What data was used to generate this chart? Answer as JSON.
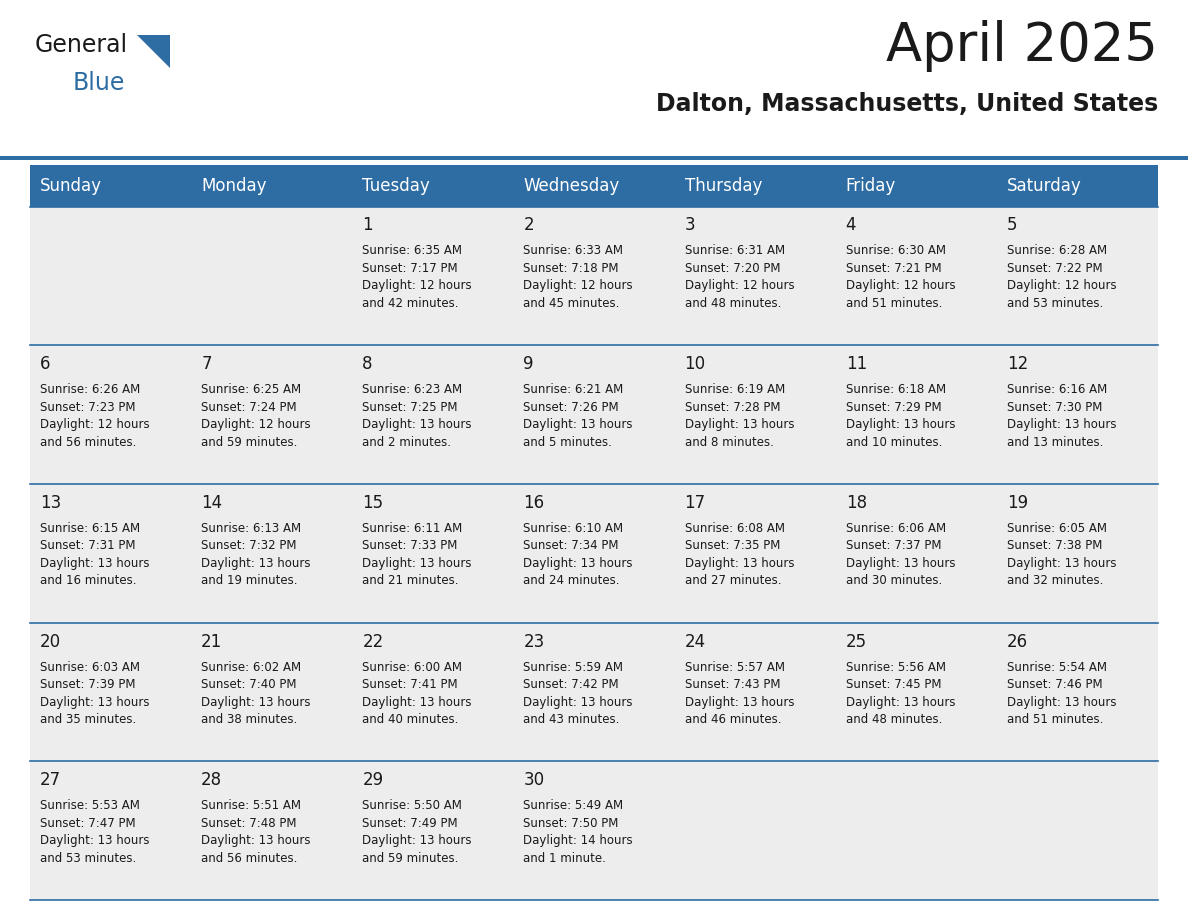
{
  "title": "April 2025",
  "subtitle": "Dalton, Massachusetts, United States",
  "header_color": "#2E6DA4",
  "header_text_color": "#FFFFFF",
  "background_color": "#FFFFFF",
  "cell_bg_color": "#EDEDED",
  "text_color": "#1a1a1a",
  "border_color": "#2E6DA4",
  "days_of_week": [
    "Sunday",
    "Monday",
    "Tuesday",
    "Wednesday",
    "Thursday",
    "Friday",
    "Saturday"
  ],
  "weeks": [
    [
      {
        "day": "",
        "text": ""
      },
      {
        "day": "",
        "text": ""
      },
      {
        "day": "1",
        "text": "Sunrise: 6:35 AM\nSunset: 7:17 PM\nDaylight: 12 hours\nand 42 minutes."
      },
      {
        "day": "2",
        "text": "Sunrise: 6:33 AM\nSunset: 7:18 PM\nDaylight: 12 hours\nand 45 minutes."
      },
      {
        "day": "3",
        "text": "Sunrise: 6:31 AM\nSunset: 7:20 PM\nDaylight: 12 hours\nand 48 minutes."
      },
      {
        "day": "4",
        "text": "Sunrise: 6:30 AM\nSunset: 7:21 PM\nDaylight: 12 hours\nand 51 minutes."
      },
      {
        "day": "5",
        "text": "Sunrise: 6:28 AM\nSunset: 7:22 PM\nDaylight: 12 hours\nand 53 minutes."
      }
    ],
    [
      {
        "day": "6",
        "text": "Sunrise: 6:26 AM\nSunset: 7:23 PM\nDaylight: 12 hours\nand 56 minutes."
      },
      {
        "day": "7",
        "text": "Sunrise: 6:25 AM\nSunset: 7:24 PM\nDaylight: 12 hours\nand 59 minutes."
      },
      {
        "day": "8",
        "text": "Sunrise: 6:23 AM\nSunset: 7:25 PM\nDaylight: 13 hours\nand 2 minutes."
      },
      {
        "day": "9",
        "text": "Sunrise: 6:21 AM\nSunset: 7:26 PM\nDaylight: 13 hours\nand 5 minutes."
      },
      {
        "day": "10",
        "text": "Sunrise: 6:19 AM\nSunset: 7:28 PM\nDaylight: 13 hours\nand 8 minutes."
      },
      {
        "day": "11",
        "text": "Sunrise: 6:18 AM\nSunset: 7:29 PM\nDaylight: 13 hours\nand 10 minutes."
      },
      {
        "day": "12",
        "text": "Sunrise: 6:16 AM\nSunset: 7:30 PM\nDaylight: 13 hours\nand 13 minutes."
      }
    ],
    [
      {
        "day": "13",
        "text": "Sunrise: 6:15 AM\nSunset: 7:31 PM\nDaylight: 13 hours\nand 16 minutes."
      },
      {
        "day": "14",
        "text": "Sunrise: 6:13 AM\nSunset: 7:32 PM\nDaylight: 13 hours\nand 19 minutes."
      },
      {
        "day": "15",
        "text": "Sunrise: 6:11 AM\nSunset: 7:33 PM\nDaylight: 13 hours\nand 21 minutes."
      },
      {
        "day": "16",
        "text": "Sunrise: 6:10 AM\nSunset: 7:34 PM\nDaylight: 13 hours\nand 24 minutes."
      },
      {
        "day": "17",
        "text": "Sunrise: 6:08 AM\nSunset: 7:35 PM\nDaylight: 13 hours\nand 27 minutes."
      },
      {
        "day": "18",
        "text": "Sunrise: 6:06 AM\nSunset: 7:37 PM\nDaylight: 13 hours\nand 30 minutes."
      },
      {
        "day": "19",
        "text": "Sunrise: 6:05 AM\nSunset: 7:38 PM\nDaylight: 13 hours\nand 32 minutes."
      }
    ],
    [
      {
        "day": "20",
        "text": "Sunrise: 6:03 AM\nSunset: 7:39 PM\nDaylight: 13 hours\nand 35 minutes."
      },
      {
        "day": "21",
        "text": "Sunrise: 6:02 AM\nSunset: 7:40 PM\nDaylight: 13 hours\nand 38 minutes."
      },
      {
        "day": "22",
        "text": "Sunrise: 6:00 AM\nSunset: 7:41 PM\nDaylight: 13 hours\nand 40 minutes."
      },
      {
        "day": "23",
        "text": "Sunrise: 5:59 AM\nSunset: 7:42 PM\nDaylight: 13 hours\nand 43 minutes."
      },
      {
        "day": "24",
        "text": "Sunrise: 5:57 AM\nSunset: 7:43 PM\nDaylight: 13 hours\nand 46 minutes."
      },
      {
        "day": "25",
        "text": "Sunrise: 5:56 AM\nSunset: 7:45 PM\nDaylight: 13 hours\nand 48 minutes."
      },
      {
        "day": "26",
        "text": "Sunrise: 5:54 AM\nSunset: 7:46 PM\nDaylight: 13 hours\nand 51 minutes."
      }
    ],
    [
      {
        "day": "27",
        "text": "Sunrise: 5:53 AM\nSunset: 7:47 PM\nDaylight: 13 hours\nand 53 minutes."
      },
      {
        "day": "28",
        "text": "Sunrise: 5:51 AM\nSunset: 7:48 PM\nDaylight: 13 hours\nand 56 minutes."
      },
      {
        "day": "29",
        "text": "Sunrise: 5:50 AM\nSunset: 7:49 PM\nDaylight: 13 hours\nand 59 minutes."
      },
      {
        "day": "30",
        "text": "Sunrise: 5:49 AM\nSunset: 7:50 PM\nDaylight: 14 hours\nand 1 minute."
      },
      {
        "day": "",
        "text": ""
      },
      {
        "day": "",
        "text": ""
      },
      {
        "day": "",
        "text": ""
      }
    ]
  ],
  "title_fontsize": 38,
  "subtitle_fontsize": 17,
  "header_fontsize": 12,
  "day_num_fontsize": 12,
  "cell_text_fontsize": 8.5,
  "logo_general_fontsize": 17,
  "logo_blue_fontsize": 17
}
